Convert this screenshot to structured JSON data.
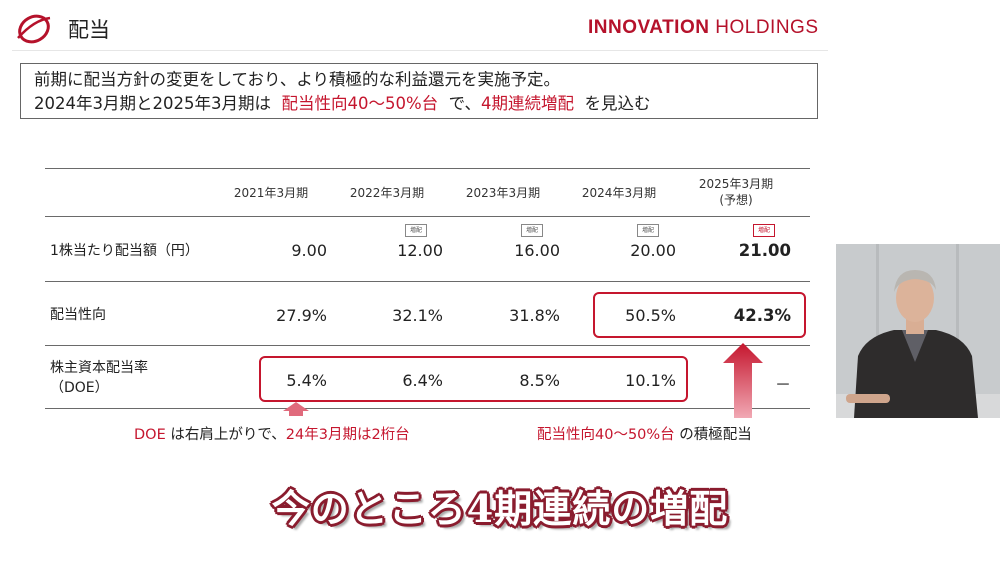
{
  "header": {
    "title": "配当",
    "brand_main": "INNOVATION",
    "brand_sub": "HOLDINGS",
    "accent": "#b5122b"
  },
  "summary": {
    "line1": "前期に配当方針の変更をしており、より積極的な利益還元を実施予定。",
    "line2_a": "2024年3月期と2025年3月期は",
    "line2_b": "配当性向40～50%台",
    "line2_c": "で、",
    "line2_d": "4期連続増配",
    "line2_e": "を見込む"
  },
  "table": {
    "columns": [
      {
        "label": "2021年3月期",
        "sub": ""
      },
      {
        "label": "2022年3月期",
        "sub": ""
      },
      {
        "label": "2023年3月期",
        "sub": ""
      },
      {
        "label": "2024年3月期",
        "sub": ""
      },
      {
        "label": "2025年3月期",
        "sub": "(予想)"
      }
    ],
    "increase_tag": "増配",
    "rows": [
      {
        "label": "1株当たり配当額（円）",
        "label2": "",
        "values": [
          "9.00",
          "12.00",
          "16.00",
          "20.00",
          "21.00"
        ]
      },
      {
        "label": "配当性向",
        "label2": "",
        "values": [
          "27.9%",
          "32.1%",
          "31.8%",
          "50.5%",
          "42.3%"
        ]
      },
      {
        "label": "株主資本配当率",
        "label2": "（DOE）",
        "values": [
          "5.4%",
          "6.4%",
          "8.5%",
          "10.1%",
          "－"
        ]
      }
    ]
  },
  "notes": {
    "left_a": "DOE",
    "left_b": " は右肩上がりで、",
    "left_c": "24年3月期は2桁台",
    "right_a": "配当性向40～50%台",
    "right_b": " の積極配当"
  },
  "caption": "今のところ4期連続の増配",
  "colors": {
    "highlight": "#c5162e",
    "caption_outline": "#8a1c2e"
  }
}
